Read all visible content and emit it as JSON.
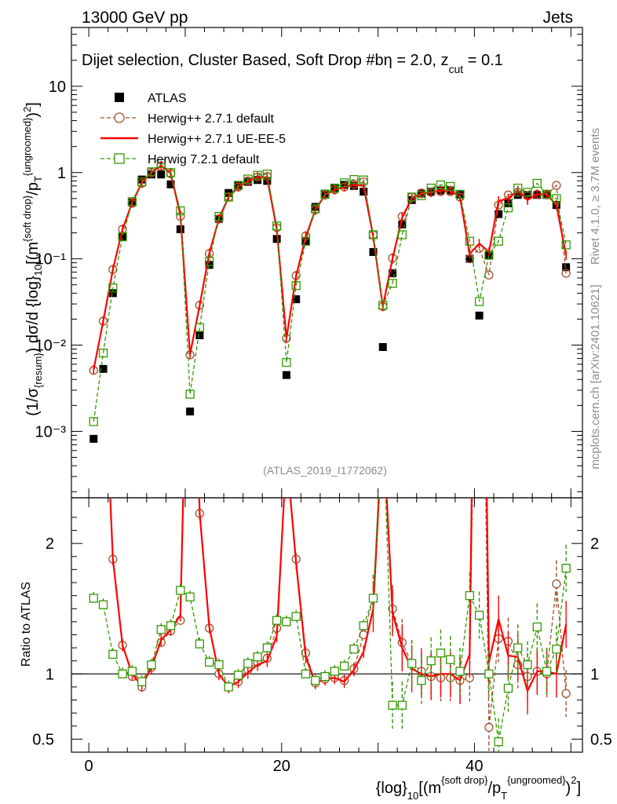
{
  "header": {
    "left": "13000 GeV pp",
    "right": "Jets"
  },
  "side": {
    "rivet": "Rivet 4.1.0, ≥ 3.7M events",
    "mcplots": "mcplots.cern.ch [arXiv:2401.10621]"
  },
  "chart_data": {
    "type": "line",
    "title": "Dijet selection, Cluster Based, Soft Drop #b",
    "title_suffix": "η = 2.0, z",
    "title_sub": "cut",
    "title_end": " = 0.1",
    "analysis_id": "(ATLAS_2019_I1772062)",
    "ylabel": "(1/σ{resum}) dσ/d {log}10[(m{soft drop}/pT{ungroomed})²]",
    "ratio_ylabel": "Ratio to ATLAS",
    "xlabel": "{log}10[(m{soft drop}/pT{ungroomed})²]",
    "xlim": [
      -1.8,
      51.2
    ],
    "ylim": [
      0.00017,
      48
    ],
    "yscale": "log",
    "ratio_ylim": [
      0.4,
      2.35
    ],
    "x_ticks": [
      0,
      20,
      40
    ],
    "y_ticks": [
      {
        "v": 0.001,
        "label": "10⁻³"
      },
      {
        "v": 0.01,
        "label": "10⁻²"
      },
      {
        "v": 0.1,
        "label": "10⁻¹"
      },
      {
        "v": 1,
        "label": "1"
      },
      {
        "v": 10,
        "label": "10"
      }
    ],
    "ratio_ticks": [
      {
        "v": 0.5,
        "label": "0.5"
      },
      {
        "v": 1,
        "label": "1"
      },
      {
        "v": 2,
        "label": "2"
      }
    ],
    "bins": [
      0.5,
      1.5,
      2.5,
      3.5,
      4.5,
      5.5,
      6.5,
      7.5,
      8.5,
      9.5,
      10.5,
      11.5,
      12.5,
      13.5,
      14.5,
      15.5,
      16.5,
      17.5,
      18.5,
      19.5,
      20.5,
      21.5,
      22.5,
      23.5,
      24.5,
      25.5,
      26.5,
      27.5,
      28.5,
      29.5,
      30.5,
      31.5,
      32.5,
      33.5,
      34.5,
      35.5,
      36.5,
      37.5,
      38.5,
      39.5,
      40.5,
      41.5,
      42.5,
      43.5,
      44.5,
      45.5,
      46.5,
      47.5,
      48.5,
      49.5
    ],
    "series": [
      {
        "name": "ATLAS",
        "color": "#000000",
        "style": "square",
        "values": [
          0.00082,
          0.0053,
          0.04,
          0.18,
          0.45,
          0.83,
          0.95,
          0.95,
          0.73,
          0.22,
          0.0017,
          0.013,
          0.085,
          0.29,
          0.58,
          0.72,
          0.78,
          0.82,
          0.8,
          0.17,
          0.0045,
          0.034,
          0.16,
          0.4,
          0.57,
          0.65,
          0.72,
          0.7,
          0.6,
          0.12,
          0.0095,
          0.068,
          0.25,
          0.48,
          0.57,
          0.6,
          0.62,
          0.62,
          0.55,
          0.1,
          0.022,
          0.11,
          0.33,
          0.44,
          0.55,
          0.55,
          0.55,
          0.55,
          0.42,
          0.08
        ]
      },
      {
        "name": "Herwig++ 2.7.1 default",
        "color": "#a0522d",
        "style": "circle-dashed",
        "values": [
          0.0051,
          0.019,
          0.075,
          0.22,
          0.44,
          0.75,
          1.0,
          1.18,
          0.97,
          0.31,
          0.0077,
          0.029,
          0.115,
          0.29,
          0.52,
          0.68,
          0.8,
          0.89,
          0.9,
          0.23,
          0.012,
          0.064,
          0.185,
          0.37,
          0.55,
          0.63,
          0.68,
          0.73,
          0.78,
          0.19,
          0.028,
          0.102,
          0.31,
          0.52,
          0.58,
          0.59,
          0.6,
          0.6,
          0.52,
          0.1,
          0.132,
          0.065,
          0.42,
          0.55,
          0.59,
          0.54,
          0.56,
          0.55,
          0.71,
          0.068
        ]
      },
      {
        "name": "Herwig++ 2.7.1 UE-EE-5",
        "color": "#ff0000",
        "style": "line",
        "values": [
          0.0052,
          0.019,
          0.075,
          0.22,
          0.45,
          0.76,
          1.0,
          1.2,
          0.98,
          0.32,
          0.0078,
          0.029,
          0.116,
          0.29,
          0.52,
          0.68,
          0.79,
          0.88,
          0.88,
          0.22,
          0.012,
          0.063,
          0.18,
          0.37,
          0.55,
          0.63,
          0.68,
          0.72,
          0.7,
          0.18,
          0.028,
          0.1,
          0.3,
          0.5,
          0.57,
          0.59,
          0.62,
          0.62,
          0.52,
          0.115,
          0.15,
          0.12,
          0.47,
          0.5,
          0.62,
          0.48,
          0.56,
          0.56,
          0.42,
          0.11
        ]
      },
      {
        "name": "Herwig 7.2.1 default",
        "color": "#339900",
        "style": "square-dashed",
        "values": [
          0.0013,
          0.0081,
          0.046,
          0.18,
          0.46,
          0.78,
          1.02,
          1.27,
          1.0,
          0.36,
          0.0027,
          0.016,
          0.093,
          0.31,
          0.52,
          0.71,
          0.84,
          0.93,
          0.96,
          0.24,
          0.0063,
          0.049,
          0.16,
          0.38,
          0.56,
          0.66,
          0.76,
          0.83,
          0.82,
          0.19,
          0.029,
          0.052,
          0.19,
          0.52,
          0.54,
          0.66,
          0.72,
          0.69,
          0.56,
          0.16,
          0.032,
          0.11,
          0.16,
          0.39,
          0.66,
          0.59,
          0.75,
          0.56,
          0.5,
          0.145
        ]
      }
    ],
    "ratios": {
      "Herwig++ 2.7.1 default": [
        6.2,
        3.6,
        1.88,
        1.22,
        0.98,
        0.9,
        1.05,
        1.24,
        1.33,
        1.41,
        4.5,
        2.23,
        1.35,
        1.0,
        0.9,
        0.94,
        1.03,
        1.09,
        1.12,
        1.35,
        2.7,
        1.88,
        1.16,
        0.93,
        0.96,
        0.97,
        0.95,
        1.04,
        1.3,
        1.58,
        2.95,
        1.5,
        1.24,
        1.08,
        1.02,
        0.98,
        0.97,
        0.97,
        0.95,
        0.97,
        6.0,
        0.59,
        1.27,
        1.25,
        1.07,
        0.98,
        1.02,
        1.0,
        1.69,
        0.85
      ],
      "Herwig++ 2.7.1 UE-EE-5": [
        6.3,
        3.6,
        1.88,
        1.22,
        1.0,
        0.91,
        1.05,
        1.26,
        1.34,
        1.45,
        4.6,
        2.23,
        1.36,
        1.0,
        0.9,
        0.94,
        1.01,
        1.07,
        1.1,
        1.29,
        2.7,
        1.85,
        1.13,
        0.93,
        0.96,
        0.97,
        0.94,
        1.03,
        1.17,
        1.5,
        2.95,
        1.47,
        1.2,
        1.04,
        1.0,
        0.98,
        1.0,
        1.0,
        0.95,
        1.15,
        6.8,
        1.09,
        1.42,
        1.14,
        1.13,
        0.87,
        1.02,
        1.02,
        1.0,
        1.38
      ],
      "Herwig 7.2.1 default": [
        1.58,
        1.53,
        1.15,
        1.0,
        1.02,
        0.94,
        1.07,
        1.34,
        1.37,
        1.64,
        1.59,
        1.23,
        1.09,
        1.07,
        0.9,
        0.99,
        1.08,
        1.13,
        1.2,
        1.41,
        1.4,
        1.44,
        1.0,
        0.95,
        0.98,
        1.02,
        1.06,
        1.19,
        1.37,
        1.58,
        3.05,
        0.76,
        0.76,
        1.08,
        0.95,
        1.1,
        1.16,
        1.11,
        1.02,
        1.6,
        1.45,
        1.0,
        0.48,
        0.89,
        1.2,
        1.07,
        1.36,
        1.02,
        1.19,
        1.81
      ]
    }
  }
}
